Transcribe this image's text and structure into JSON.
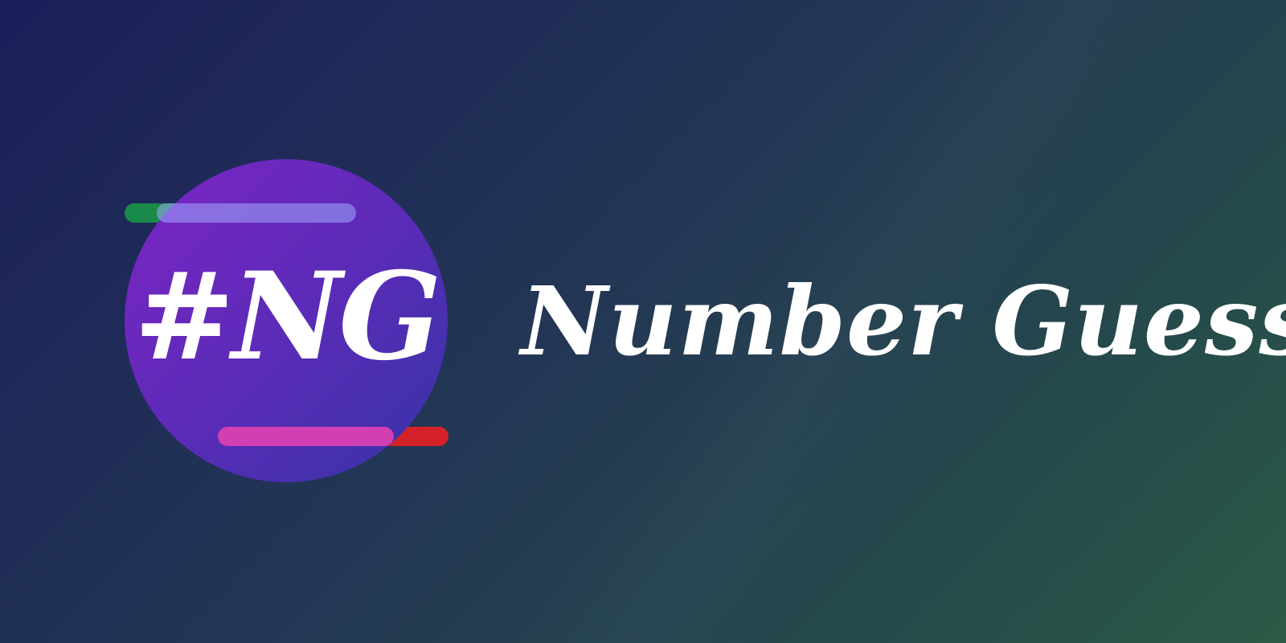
{
  "logo": {
    "text": "#NG",
    "colors": {
      "circle_start": "#7d25c4",
      "circle_end": "#3534a6",
      "bar_top": "#1a8a4a",
      "bar_top_overlay": "#8f95e6",
      "bar_bottom": "#d42228",
      "bar_bottom_overlay": "#d23fb2"
    }
  },
  "title": "Number Guesser",
  "background": {
    "start": "#1b1f5a",
    "end": "#2b5a46"
  }
}
